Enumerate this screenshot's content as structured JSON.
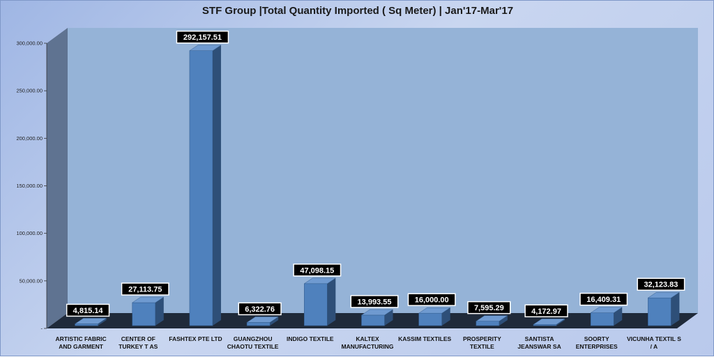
{
  "chart_data": {
    "type": "bar",
    "title": "STF Group |Total Quantity Imported ( Sq Meter) | Jan'17-Mar'17",
    "categories": [
      [
        "ARTISTIC FABRIC",
        "AND GARMENT"
      ],
      [
        "CENTER OF",
        "TURKEY  T AS"
      ],
      [
        "FASHTEX PTE LTD"
      ],
      [
        "GUANGZHOU",
        "CHAOTU TEXTILE"
      ],
      [
        "INDIGO TEXTILE"
      ],
      [
        "KALTEX",
        "MANUFACTURING"
      ],
      [
        "KASSIM TEXTILES"
      ],
      [
        "PROSPERITY",
        "TEXTILE"
      ],
      [
        "SANTISTA",
        "JEANSWAR SA"
      ],
      [
        "SOORTY",
        "ENTERPRISES"
      ],
      [
        "VICUNHA TEXTIL S",
        "/ A"
      ]
    ],
    "values": [
      4815.14,
      27113.75,
      292157.51,
      6322.76,
      47098.15,
      13993.55,
      16000.0,
      7595.29,
      4172.97,
      16409.31,
      32123.83
    ],
    "data_labels": [
      "4,815.14",
      "27,113.75",
      "292,157.51",
      "6,322.76",
      "47,098.15",
      "13,993.55",
      "16,000.00",
      "7,595.29",
      "4,172.97",
      "16,409.31",
      "32,123.83"
    ],
    "yticks": [
      "-",
      "50,000.00",
      "100,000.00",
      "150,000.00",
      "200,000.00",
      "250,000.00",
      "300,000.00"
    ],
    "ylim": [
      0,
      300000
    ],
    "xlabel": "",
    "ylabel": "",
    "grid": false,
    "legend": "none",
    "colors": {
      "bar_front": "#4f81bd",
      "bar_side": "#2e4f78",
      "bar_top": "#6f9ad0",
      "back_wall": "#95b3d7",
      "side_wall": "#5f7391",
      "floor": "#1f2a3a",
      "label_bg": "#000000"
    }
  }
}
